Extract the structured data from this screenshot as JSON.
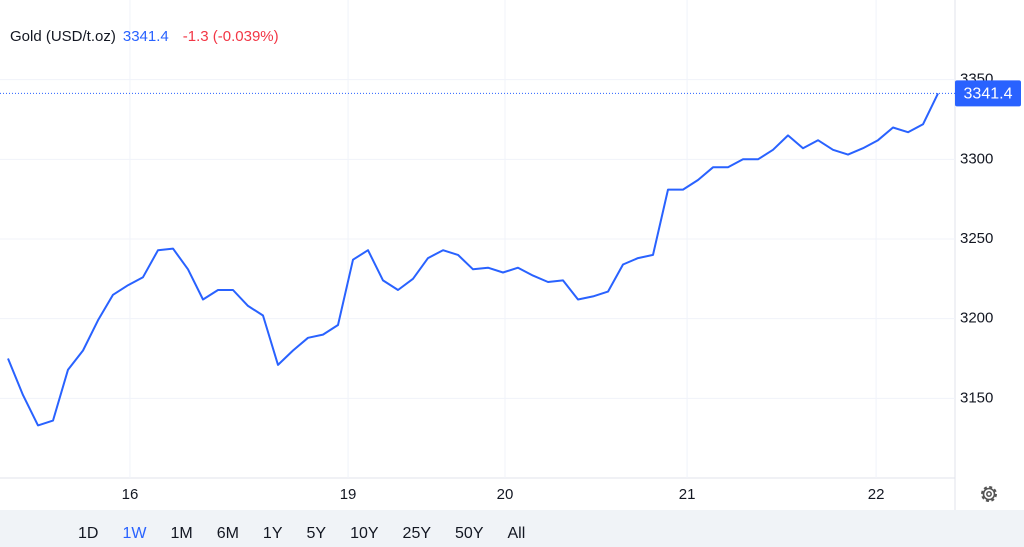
{
  "chart_data": {
    "type": "line",
    "title": "Gold (USD/t.oz)",
    "price": 3341.4,
    "change": "-1.3 (-0.039%)",
    "color": "#2962ff",
    "x": [
      0,
      1,
      2,
      3,
      4,
      5,
      6,
      7,
      8,
      9,
      10,
      11,
      12,
      13,
      14,
      15,
      16,
      17,
      18,
      19,
      20,
      21,
      22,
      23,
      24,
      25,
      26,
      27,
      28,
      29,
      30,
      31,
      32,
      33,
      34,
      35,
      36,
      37,
      38,
      39,
      40,
      41,
      42,
      43,
      44,
      45,
      46,
      47,
      48,
      49,
      50,
      51,
      52,
      53,
      54,
      55,
      56,
      57,
      58,
      59,
      60,
      61,
      62
    ],
    "values": [
      3175,
      3152,
      3133,
      3136,
      3168,
      3180,
      3199,
      3215,
      3221,
      3226,
      3243,
      3244,
      3231,
      3212,
      3218,
      3218,
      3208,
      3202,
      3171,
      3180,
      3188,
      3190,
      3196,
      3237,
      3243,
      3224,
      3218,
      3225,
      3238,
      3243,
      3240,
      3231,
      3232,
      3229,
      3232,
      3227,
      3223,
      3224,
      3212,
      3214,
      3217,
      3234,
      3238,
      3240,
      3281,
      3281,
      3287,
      3295,
      3295,
      3300,
      3300,
      3306,
      3315,
      3307,
      3312,
      3306,
      3303,
      3307,
      3312,
      3320,
      3317,
      3322,
      3341.4
    ],
    "xlim": [
      0,
      63.13
    ],
    "xticks": [
      {
        "value": 8.13,
        "label": "16"
      },
      {
        "value": 22.67,
        "label": "19"
      },
      {
        "value": 33.13,
        "label": "20"
      },
      {
        "value": 45.27,
        "label": "21"
      },
      {
        "value": 57.87,
        "label": "22"
      }
    ],
    "ylim": [
      3100,
      3400
    ],
    "yticks": [
      3150,
      3200,
      3250,
      3300,
      3350
    ],
    "grid": true,
    "ranges": [
      "1D",
      "1W",
      "1M",
      "6M",
      "1Y",
      "5Y",
      "10Y",
      "25Y",
      "50Y",
      "All"
    ],
    "active_range": "1W"
  }
}
